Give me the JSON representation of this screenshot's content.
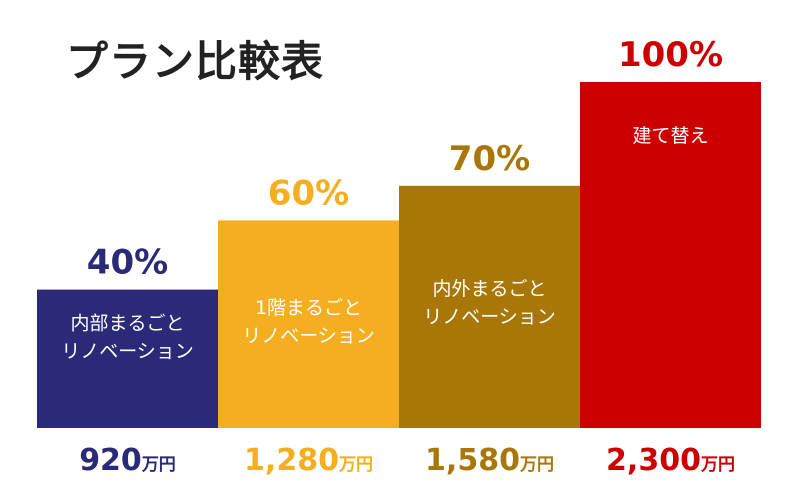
{
  "chart_data": {
    "type": "bar",
    "title": "プラン比較表",
    "xlabel": "",
    "ylabel": "",
    "ylim": [
      0,
      100
    ],
    "grid": false,
    "legend": "none",
    "categories": [
      "内部まるごとリノベーション",
      "1階まるごとリノベーション",
      "内外まるごとリノベーション",
      "建て替え"
    ],
    "bar_labels": [
      [
        "内部まるごと",
        "リノベーション"
      ],
      [
        "1階まるごと",
        "リノベーション"
      ],
      [
        "内外まるごと",
        "リノベーション"
      ],
      [
        "建て替え"
      ]
    ],
    "values": [
      40,
      60,
      70,
      100
    ],
    "value_labels": [
      "40%",
      "60%",
      "70%",
      "100%"
    ],
    "cost_numbers": [
      "920",
      "1,280",
      "1,580",
      "2,300"
    ],
    "cost_unit": "万円",
    "colors": [
      "#2b2a78",
      "#f4ae1f",
      "#a87708",
      "#cc0000"
    ]
  }
}
